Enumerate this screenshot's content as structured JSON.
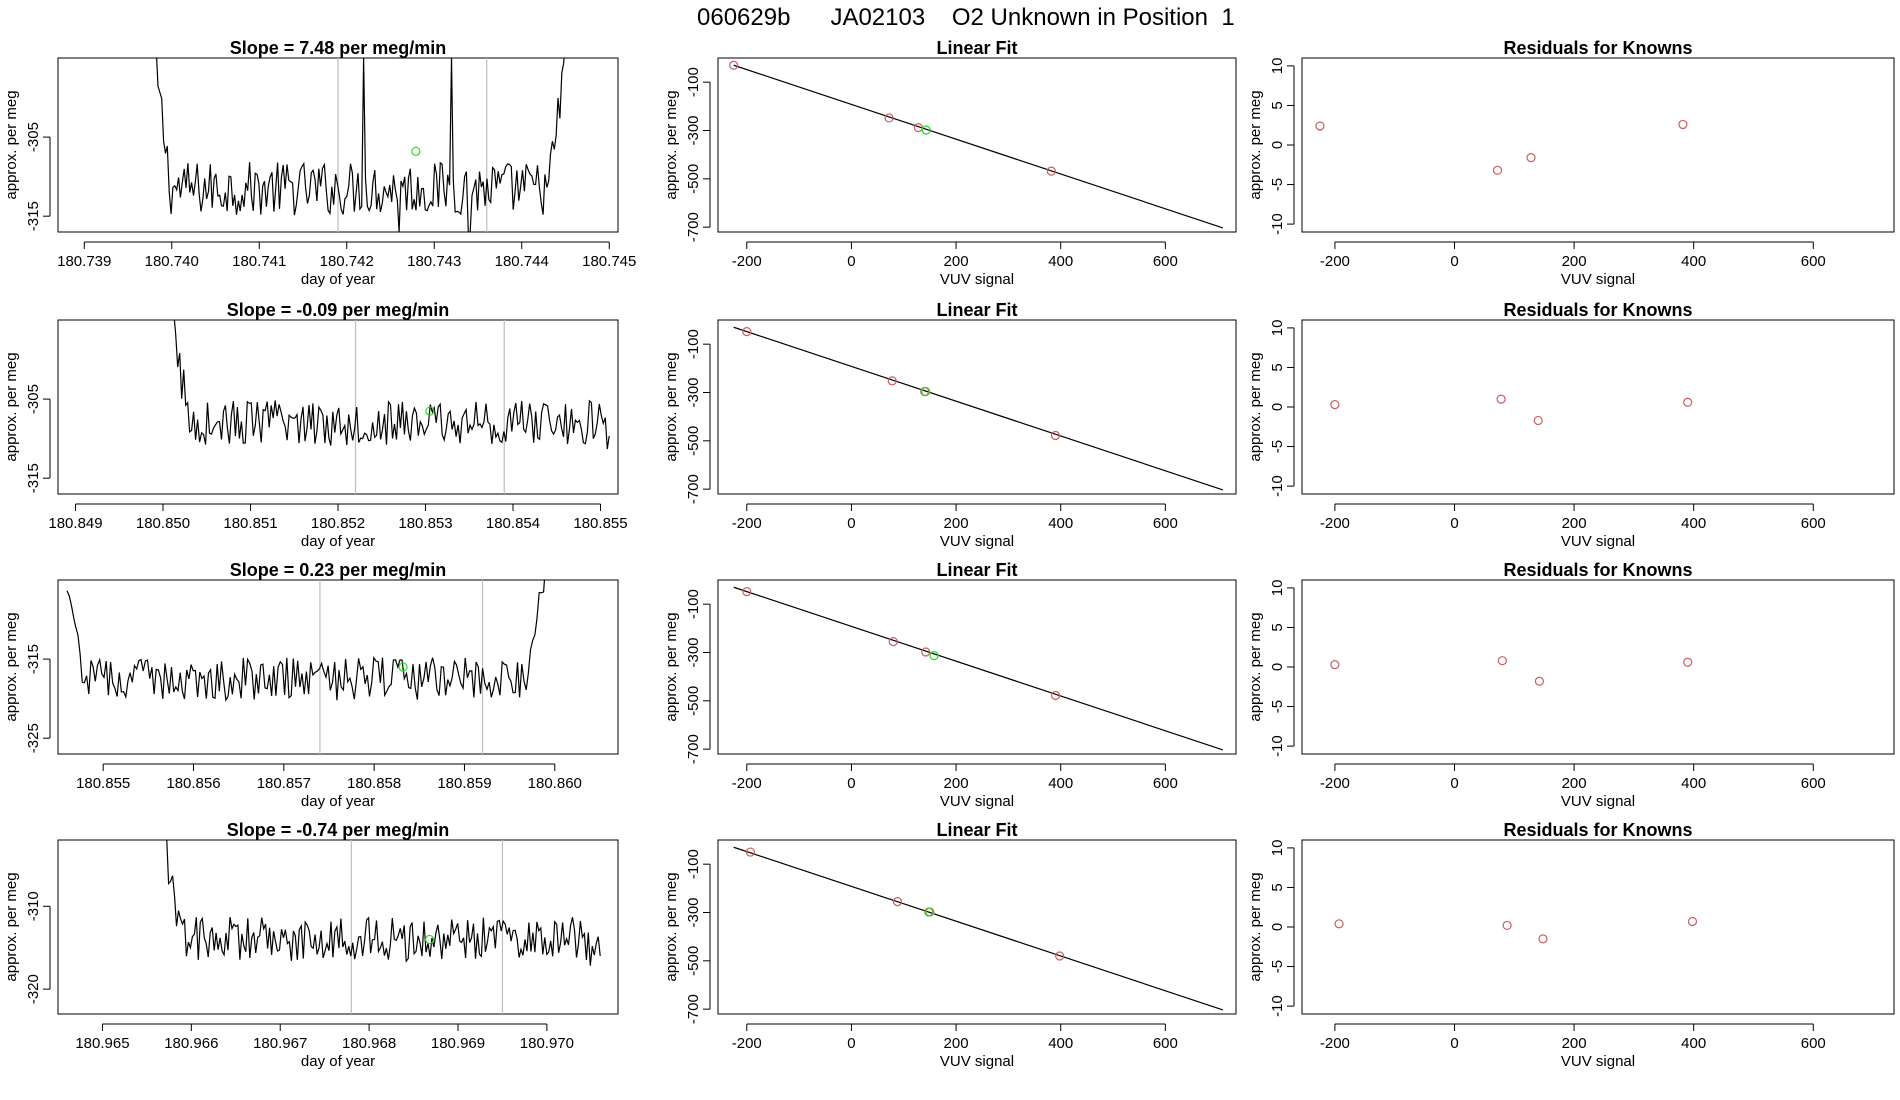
{
  "figure_title": "060629b      JA02103    O2 Unknown in Position  1",
  "chart_data": [
    {
      "type": "line",
      "panel": "timeseries",
      "row": 1,
      "title": "Slope =  7.48  per meg/min",
      "xlabel": "day of year",
      "ylabel": "approx. per meg",
      "xlim": [
        180.7387,
        180.7451
      ],
      "ylim": [
        -317,
        -295
      ],
      "xticks": [
        180.739,
        180.74,
        180.741,
        180.742,
        180.743,
        180.744,
        180.745
      ],
      "xtick_labels": [
        "180.739",
        "180.740",
        "180.741",
        "180.742",
        "180.743",
        "180.744",
        "180.745"
      ],
      "yticks": [
        -305,
        -315
      ],
      "ytick_labels": [
        "-305",
        "-315"
      ],
      "vlines": [
        180.7419,
        180.7436
      ],
      "series": [
        {
          "name": "signal",
          "x_start": 180.7398,
          "x_end": 180.7445,
          "start_level": -295,
          "mean": -311.5,
          "noise": 1.9,
          "end_level": -295,
          "spikes": [
            {
              "x": 180.7422,
              "y": -295
            },
            {
              "x": 180.7426,
              "y": -317
            },
            {
              "x": 180.7432,
              "y": -295
            },
            {
              "x": 180.7434,
              "y": -317
            }
          ]
        }
      ],
      "highlight": {
        "x": 180.74279,
        "y": -306.8
      }
    },
    {
      "type": "scatter",
      "panel": "fit",
      "row": 1,
      "title": "Linear Fit",
      "xlabel": "VUV signal",
      "ylabel": "approx. per meg",
      "xlim": [
        -255,
        735
      ],
      "ylim": [
        -720,
        0
      ],
      "xticks": [
        -200,
        0,
        200,
        400,
        600
      ],
      "xtick_labels": [
        "-200",
        "0",
        "200",
        "400",
        "600"
      ],
      "yticks": [
        -100,
        -300,
        -500,
        -700
      ],
      "ytick_labels": [
        "-100",
        "-300",
        "-500",
        "-700"
      ],
      "points": [
        {
          "x": -225,
          "y": -30
        },
        {
          "x": 72,
          "y": -248
        },
        {
          "x": 128,
          "y": -288
        },
        {
          "x": 382,
          "y": -468
        }
      ],
      "unknown": {
        "x": 143,
        "y": -298
      },
      "fit_line": {
        "x": [
          -225,
          710
        ],
        "y": [
          -30,
          -703
        ]
      }
    },
    {
      "type": "scatter",
      "panel": "residuals",
      "row": 1,
      "title": "Residuals for Knowns",
      "xlabel": "VUV signal",
      "ylabel": "approx. per meg",
      "xlim": [
        -255,
        735
      ],
      "ylim": [
        -11,
        11
      ],
      "xticks": [
        -200,
        0,
        200,
        400,
        600
      ],
      "xtick_labels": [
        "-200",
        "0",
        "200",
        "400",
        "600"
      ],
      "yticks": [
        10,
        5,
        0,
        -5,
        -10
      ],
      "ytick_labels": [
        "10",
        "5",
        "0",
        "-5",
        "-10"
      ],
      "points": [
        {
          "x": -225,
          "y": 2.4
        },
        {
          "x": 72,
          "y": -3.2
        },
        {
          "x": 128,
          "y": -1.6
        },
        {
          "x": 382,
          "y": 2.6
        }
      ]
    },
    {
      "type": "line",
      "panel": "timeseries",
      "row": 2,
      "title": "Slope =  -0.09  per meg/min",
      "xlabel": "day of year",
      "ylabel": "approx. per meg",
      "xlim": [
        180.8488,
        180.8552
      ],
      "ylim": [
        -317,
        -295
      ],
      "xticks": [
        180.849,
        180.85,
        180.851,
        180.852,
        180.853,
        180.854,
        180.855
      ],
      "xtick_labels": [
        "180.849",
        "180.850",
        "180.851",
        "180.852",
        "180.853",
        "180.854",
        "180.855"
      ],
      "yticks": [
        -305,
        -315
      ],
      "ytick_labels": [
        "-305",
        "-315"
      ],
      "vlines": [
        180.8522,
        180.8539
      ],
      "series": [
        {
          "name": "signal",
          "x_start": 180.8501,
          "x_end": 180.8551,
          "start_level": -295,
          "mean": -308,
          "noise": 1.6,
          "end_level": -309
        }
      ],
      "highlight": {
        "x": 180.85305,
        "y": -306.5
      }
    },
    {
      "type": "scatter",
      "panel": "fit",
      "row": 2,
      "title": "Linear Fit",
      "xlabel": "VUV signal",
      "ylabel": "approx. per meg",
      "xlim": [
        -255,
        735
      ],
      "ylim": [
        -720,
        0
      ],
      "xticks": [
        -200,
        0,
        200,
        400,
        600
      ],
      "xtick_labels": [
        "-200",
        "0",
        "200",
        "400",
        "600"
      ],
      "yticks": [
        -100,
        -300,
        -500,
        -700
      ],
      "ytick_labels": [
        "-100",
        "-300",
        "-500",
        "-700"
      ],
      "points": [
        {
          "x": -200,
          "y": -48
        },
        {
          "x": 78,
          "y": -252
        },
        {
          "x": 140,
          "y": -296
        },
        {
          "x": 390,
          "y": -478
        }
      ],
      "unknown": {
        "x": 142,
        "y": -296
      },
      "fit_line": {
        "x": [
          -225,
          710
        ],
        "y": [
          -30,
          -703
        ]
      }
    },
    {
      "type": "scatter",
      "panel": "residuals",
      "row": 2,
      "title": "Residuals for Knowns",
      "xlabel": "VUV signal",
      "ylabel": "approx. per meg",
      "xlim": [
        -255,
        735
      ],
      "ylim": [
        -11,
        11
      ],
      "xticks": [
        -200,
        0,
        200,
        400,
        600
      ],
      "xtick_labels": [
        "-200",
        "0",
        "200",
        "400",
        "600"
      ],
      "yticks": [
        10,
        5,
        0,
        -5,
        -10
      ],
      "ytick_labels": [
        "10",
        "5",
        "0",
        "-5",
        "-10"
      ],
      "points": [
        {
          "x": -200,
          "y": 0.3
        },
        {
          "x": 78,
          "y": 1.0
        },
        {
          "x": 140,
          "y": -1.7
        },
        {
          "x": 390,
          "y": 0.6
        }
      ]
    },
    {
      "type": "line",
      "panel": "timeseries",
      "row": 3,
      "title": "Slope =  0.23  per meg/min",
      "xlabel": "day of year",
      "ylabel": "approx. per meg",
      "xlim": [
        180.8545,
        180.8607
      ],
      "ylim": [
        -327,
        -305
      ],
      "xticks": [
        180.855,
        180.856,
        180.857,
        180.858,
        180.859,
        180.86
      ],
      "xtick_labels": [
        "180.855",
        "180.856",
        "180.857",
        "180.858",
        "180.859",
        "180.860"
      ],
      "yticks": [
        -315,
        -325
      ],
      "ytick_labels": [
        "-315",
        "-325"
      ],
      "vlines": [
        180.8574,
        180.8592
      ],
      "series": [
        {
          "name": "signal",
          "x_start": 180.8546,
          "x_end": 180.8599,
          "start_level": -308,
          "mean": -317.5,
          "noise": 1.5,
          "end_level": -305
        }
      ],
      "highlight": {
        "x": 180.85832,
        "y": -316
      }
    },
    {
      "type": "scatter",
      "panel": "fit",
      "row": 3,
      "title": "Linear Fit",
      "xlabel": "VUV signal",
      "ylabel": "approx. per meg",
      "xlim": [
        -255,
        735
      ],
      "ylim": [
        -720,
        0
      ],
      "xticks": [
        -200,
        0,
        200,
        400,
        600
      ],
      "xtick_labels": [
        "-200",
        "0",
        "200",
        "400",
        "600"
      ],
      "yticks": [
        -100,
        -300,
        -500,
        -700
      ],
      "ytick_labels": [
        "-100",
        "-300",
        "-500",
        "-700"
      ],
      "points": [
        {
          "x": -200,
          "y": -48
        },
        {
          "x": 80,
          "y": -255
        },
        {
          "x": 142,
          "y": -298
        },
        {
          "x": 390,
          "y": -478
        }
      ],
      "unknown": {
        "x": 158,
        "y": -313
      },
      "fit_line": {
        "x": [
          -225,
          710
        ],
        "y": [
          -30,
          -703
        ]
      }
    },
    {
      "type": "scatter",
      "panel": "residuals",
      "row": 3,
      "title": "Residuals for Knowns",
      "xlabel": "VUV signal",
      "ylabel": "approx. per meg",
      "xlim": [
        -255,
        735
      ],
      "ylim": [
        -11,
        11
      ],
      "xticks": [
        -200,
        0,
        200,
        400,
        600
      ],
      "xtick_labels": [
        "-200",
        "0",
        "200",
        "400",
        "600"
      ],
      "yticks": [
        10,
        5,
        0,
        -5,
        -10
      ],
      "ytick_labels": [
        "10",
        "5",
        "0",
        "-5",
        "-10"
      ],
      "points": [
        {
          "x": -200,
          "y": 0.3
        },
        {
          "x": 80,
          "y": 0.8
        },
        {
          "x": 142,
          "y": -1.8
        },
        {
          "x": 390,
          "y": 0.6
        }
      ]
    },
    {
      "type": "line",
      "panel": "timeseries",
      "row": 4,
      "title": "Slope =  -0.74  per meg/min",
      "xlabel": "day of year",
      "ylabel": "approx. per meg",
      "xlim": [
        180.9645,
        180.9708
      ],
      "ylim": [
        -323,
        -302
      ],
      "xticks": [
        180.965,
        180.966,
        180.967,
        180.968,
        180.969,
        180.97
      ],
      "xtick_labels": [
        "180.965",
        "180.966",
        "180.967",
        "180.968",
        "180.969",
        "180.970"
      ],
      "yticks": [
        -310,
        -320
      ],
      "ytick_labels": [
        "-310",
        "-320"
      ],
      "vlines": [
        180.9678,
        180.9695
      ],
      "series": [
        {
          "name": "signal",
          "x_start": 180.9657,
          "x_end": 180.9706,
          "start_level": -302,
          "mean": -314,
          "noise": 1.5,
          "end_level": -316
        }
      ],
      "highlight": {
        "x": 180.96868,
        "y": -314
      }
    },
    {
      "type": "scatter",
      "panel": "fit",
      "row": 4,
      "title": "Linear Fit",
      "xlabel": "VUV signal",
      "ylabel": "approx. per meg",
      "xlim": [
        -255,
        735
      ],
      "ylim": [
        -720,
        0
      ],
      "xticks": [
        -200,
        0,
        200,
        400,
        600
      ],
      "xtick_labels": [
        "-200",
        "0",
        "200",
        "400",
        "600"
      ],
      "yticks": [
        -100,
        -300,
        -500,
        -700
      ],
      "ytick_labels": [
        "-100",
        "-300",
        "-500",
        "-700"
      ],
      "points": [
        {
          "x": -193,
          "y": -50
        },
        {
          "x": 88,
          "y": -255
        },
        {
          "x": 148,
          "y": -298
        },
        {
          "x": 398,
          "y": -480
        }
      ],
      "unknown": {
        "x": 150,
        "y": -298
      },
      "fit_line": {
        "x": [
          -225,
          710
        ],
        "y": [
          -30,
          -703
        ]
      }
    },
    {
      "type": "scatter",
      "panel": "residuals",
      "row": 4,
      "title": "Residuals for Knowns",
      "xlabel": "VUV signal",
      "ylabel": "approx. per meg",
      "xlim": [
        -255,
        735
      ],
      "ylim": [
        -11,
        11
      ],
      "xticks": [
        -200,
        0,
        200,
        400,
        600
      ],
      "xtick_labels": [
        "-200",
        "0",
        "200",
        "400",
        "600"
      ],
      "yticks": [
        10,
        5,
        0,
        -5,
        -10
      ],
      "ytick_labels": [
        "10",
        "5",
        "0",
        "-5",
        "-10"
      ],
      "points": [
        {
          "x": -193,
          "y": 0.4
        },
        {
          "x": 88,
          "y": 0.2
        },
        {
          "x": 148,
          "y": -1.5
        },
        {
          "x": 398,
          "y": 0.7
        }
      ]
    }
  ],
  "colors": {
    "line": "#000000",
    "vline": "#bebebe",
    "known_point": "#cd5c5c",
    "unknown_point": "#22dd22",
    "axis": "#000000"
  }
}
